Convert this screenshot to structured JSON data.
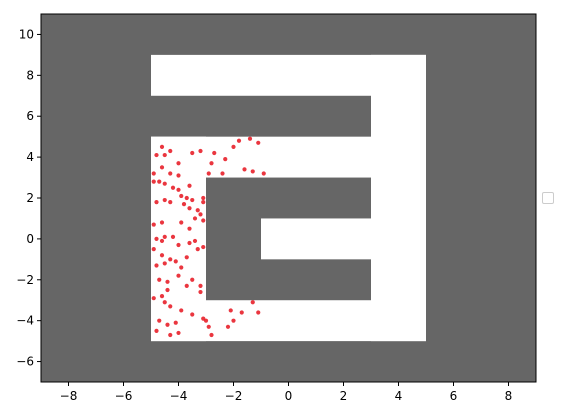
{
  "chart_data": {
    "type": "scatter",
    "title": "",
    "xlabel": "",
    "ylabel": "",
    "xlim": [
      -9,
      9
    ],
    "ylim": [
      -7,
      11
    ],
    "xticks": [
      -8,
      -6,
      -4,
      -2,
      0,
      2,
      4,
      6,
      8
    ],
    "yticks": [
      -6,
      -4,
      -2,
      0,
      2,
      4,
      6,
      8,
      10
    ],
    "grid": false,
    "legend": {
      "placement": "right",
      "entries": []
    },
    "background_color": "#666666",
    "free_space_color": "#ffffff",
    "point_color": "#e8202a",
    "free_regions": [
      {
        "x": [
          -5,
          5
        ],
        "y": [
          7,
          9
        ]
      },
      {
        "x": [
          3,
          5
        ],
        "y": [
          -5,
          9
        ]
      },
      {
        "x": [
          -5,
          5
        ],
        "y": [
          3,
          5
        ]
      },
      {
        "x": [
          -5,
          -3
        ],
        "y": [
          -5,
          5
        ]
      },
      {
        "x": [
          -5,
          5
        ],
        "y": [
          -5,
          -3
        ]
      },
      {
        "x": [
          -1,
          5
        ],
        "y": [
          -1,
          1
        ]
      }
    ],
    "series": [
      {
        "points": [
          [
            -4.6,
            4.5
          ],
          [
            -4.8,
            4.1
          ],
          [
            -4.5,
            4.1
          ],
          [
            -4.3,
            4.3
          ],
          [
            -4.0,
            3.7
          ],
          [
            -3.5,
            4.2
          ],
          [
            -3.2,
            4.3
          ],
          [
            -2.7,
            4.2
          ],
          [
            -2.3,
            3.9
          ],
          [
            -2.0,
            4.5
          ],
          [
            -1.8,
            4.8
          ],
          [
            -1.4,
            4.9
          ],
          [
            -1.1,
            4.7
          ],
          [
            -1.6,
            3.4
          ],
          [
            -1.3,
            3.3
          ],
          [
            -0.9,
            3.2
          ],
          [
            -2.8,
            3.7
          ],
          [
            -4.9,
            3.2
          ],
          [
            -4.6,
            3.5
          ],
          [
            -4.3,
            3.2
          ],
          [
            -4.0,
            3.1
          ],
          [
            -3.6,
            2.6
          ],
          [
            -2.9,
            3.2
          ],
          [
            -2.4,
            3.2
          ],
          [
            -4.9,
            2.8
          ],
          [
            -4.7,
            2.8
          ],
          [
            -4.5,
            2.7
          ],
          [
            -4.2,
            2.5
          ],
          [
            -4.0,
            2.4
          ],
          [
            -3.9,
            2.1
          ],
          [
            -3.7,
            2.0
          ],
          [
            -3.5,
            1.9
          ],
          [
            -3.1,
            2.0
          ],
          [
            -3.1,
            1.8
          ],
          [
            -4.8,
            1.8
          ],
          [
            -4.5,
            1.9
          ],
          [
            -4.3,
            1.8
          ],
          [
            -3.8,
            1.7
          ],
          [
            -3.6,
            1.5
          ],
          [
            -3.3,
            1.4
          ],
          [
            -3.2,
            1.2
          ],
          [
            -3.4,
            1.0
          ],
          [
            -3.1,
            0.9
          ],
          [
            -3.9,
            0.8
          ],
          [
            -4.6,
            0.8
          ],
          [
            -4.9,
            0.7
          ],
          [
            -3.6,
            0.5
          ],
          [
            -4.8,
            0.0
          ],
          [
            -4.6,
            -0.1
          ],
          [
            -4.5,
            0.1
          ],
          [
            -4.2,
            0.1
          ],
          [
            -4.0,
            -0.3
          ],
          [
            -3.6,
            -0.2
          ],
          [
            -3.4,
            -0.1
          ],
          [
            -3.1,
            -0.4
          ],
          [
            -3.3,
            -0.5
          ],
          [
            -4.9,
            -0.5
          ],
          [
            -4.6,
            -0.8
          ],
          [
            -4.3,
            -1.0
          ],
          [
            -4.1,
            -1.1
          ],
          [
            -3.7,
            -0.9
          ],
          [
            -3.9,
            -1.4
          ],
          [
            -4.5,
            -1.2
          ],
          [
            -4.8,
            -1.3
          ],
          [
            -4.7,
            -2.0
          ],
          [
            -4.4,
            -2.1
          ],
          [
            -4.0,
            -1.8
          ],
          [
            -3.5,
            -2.0
          ],
          [
            -4.6,
            -2.8
          ],
          [
            -4.4,
            -2.5
          ],
          [
            -3.7,
            -2.3
          ],
          [
            -4.9,
            -2.9
          ],
          [
            -4.5,
            -3.1
          ],
          [
            -4.3,
            -3.3
          ],
          [
            -3.9,
            -3.5
          ],
          [
            -3.5,
            -3.7
          ],
          [
            -3.2,
            -2.3
          ],
          [
            -3.2,
            -2.6
          ],
          [
            -3.1,
            -3.9
          ],
          [
            -4.7,
            -4.0
          ],
          [
            -4.4,
            -4.2
          ],
          [
            -4.1,
            -4.1
          ],
          [
            -4.0,
            -4.6
          ],
          [
            -4.8,
            -4.5
          ],
          [
            -4.3,
            -4.7
          ],
          [
            -3.0,
            -4.0
          ],
          [
            -2.9,
            -4.3
          ],
          [
            -2.8,
            -4.7
          ],
          [
            -2.2,
            -4.3
          ],
          [
            -2.0,
            -4.0
          ],
          [
            -2.1,
            -3.5
          ],
          [
            -1.7,
            -3.6
          ],
          [
            -1.3,
            -3.1
          ],
          [
            -1.1,
            -3.6
          ]
        ]
      }
    ]
  }
}
